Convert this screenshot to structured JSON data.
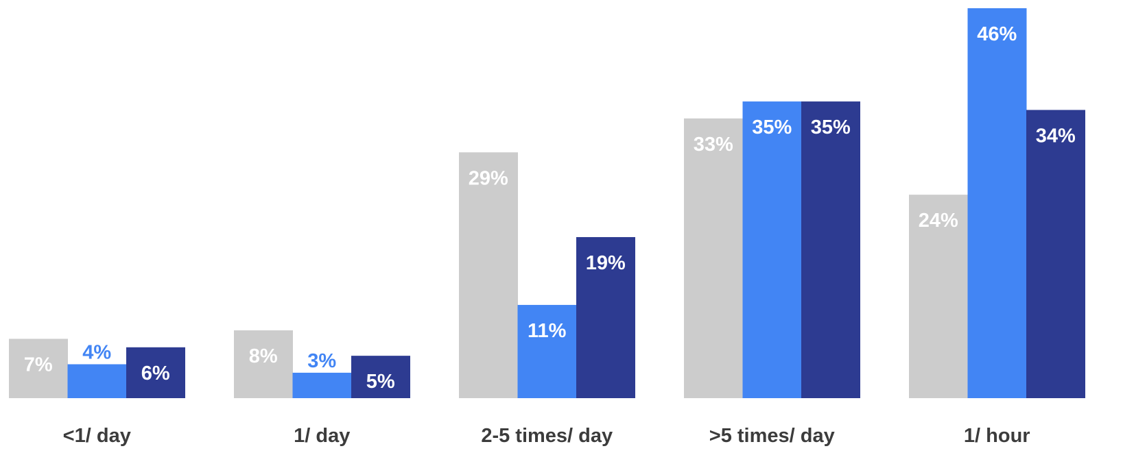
{
  "chart_data": {
    "type": "bar",
    "categories": [
      "<1/ day",
      "1/ day",
      "2-5 times/ day",
      ">5 times/ day",
      "1/ hour"
    ],
    "series": [
      {
        "values": [
          7,
          8,
          29,
          33,
          24
        ],
        "color": "#cccccc",
        "label_color": "#ffffff"
      },
      {
        "values": [
          4,
          3,
          11,
          35,
          46
        ],
        "color": "#4285f4",
        "label_color": "#ffffff"
      },
      {
        "values": [
          6,
          5,
          19,
          35,
          34
        ],
        "color": "#2d3b91",
        "label_color": "#ffffff"
      }
    ],
    "value_suffix": "%",
    "ylim": [
      0,
      46
    ],
    "small_value_label_color": "#4285f4",
    "grid": false,
    "legend": "none"
  }
}
